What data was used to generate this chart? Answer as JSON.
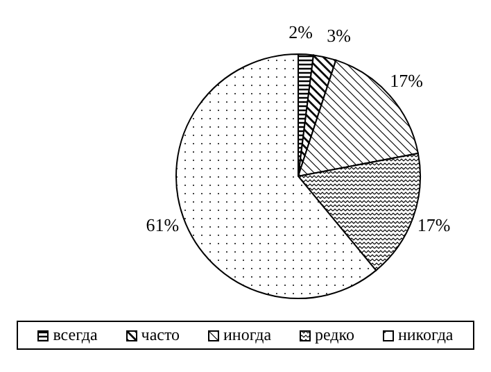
{
  "chart_data": {
    "type": "pie",
    "categories": [
      "всегда",
      "часто",
      "иногда",
      "редко",
      "никогда"
    ],
    "values": [
      2,
      3,
      17,
      17,
      61
    ],
    "colors": [
      "#000000",
      "#000000",
      "#000000",
      "#000000",
      "#000000"
    ],
    "value_labels": [
      "2%",
      "3%",
      "17%",
      "17%",
      "61%"
    ],
    "legend": "bottom"
  }
}
